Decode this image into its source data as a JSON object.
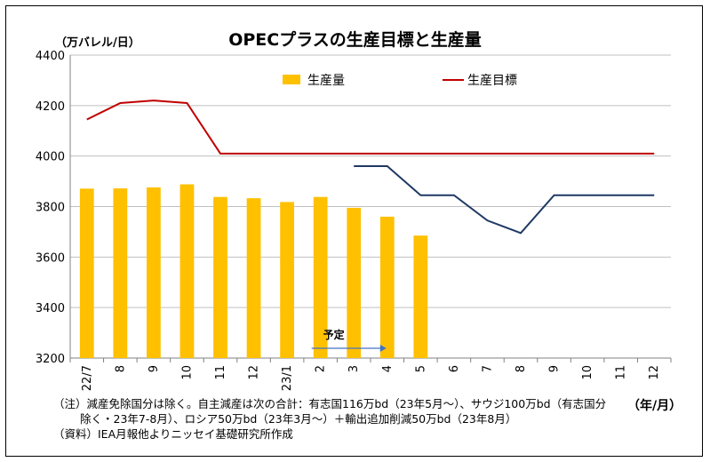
{
  "chart_data": {
    "type": "bar",
    "title": "OPECプラスの生産目標と生産量",
    "ylabel": "（万バレル/日）",
    "xlabel": "（年/月）",
    "ylim": [
      3200,
      4400
    ],
    "yticks": [
      3200,
      3400,
      3600,
      3800,
      4000,
      4200,
      4400
    ],
    "categories": [
      "22/7",
      "8",
      "9",
      "10",
      "11",
      "12",
      "23/1",
      "2",
      "3",
      "4",
      "5",
      "6",
      "7",
      "8",
      "9",
      "10",
      "11",
      "12"
    ],
    "series": [
      {
        "name": "生産量",
        "kind": "bar",
        "color": "#FFC000",
        "values": [
          3871,
          3872,
          3876,
          3888,
          3838,
          3833,
          3818,
          3838,
          3795,
          3760,
          3685,
          null,
          null,
          null,
          null,
          null,
          null,
          null
        ]
      },
      {
        "name": "生産目標",
        "kind": "line",
        "color": "#C00000",
        "values": [
          4145,
          4210,
          4220,
          4210,
          4010,
          4010,
          4010,
          4010,
          4010,
          4010,
          4010,
          4010,
          4010,
          4010,
          4010,
          4010,
          4010,
          4010
        ]
      },
      {
        "kind": "line",
        "color": "#1F3864",
        "values": [
          null,
          null,
          null,
          null,
          null,
          null,
          null,
          null,
          3960,
          3960,
          3845,
          3845,
          3745,
          3695,
          3845,
          3845,
          3845,
          3845
        ]
      }
    ],
    "annotation": {
      "label": "予定",
      "arrow_from_index": 7,
      "arrow_to_index": 9
    },
    "legend_position": "top",
    "grid": true
  },
  "notes": [
    "（注）減産免除国分は除く。自主減産は次の合計：有志国116万bd（23年5月～）、サウジ100万bd（有志国分",
    "除く・23年7-8月）、ロシア50万bd（23年3月～）＋輸出追加削減50万bd（23年8月）",
    "（資料）IEA月報他よりニッセイ基礎研究所作成"
  ],
  "colors": {
    "grid": "#c0c0c0",
    "axis": "#808080",
    "arrow": "#4472C4"
  }
}
